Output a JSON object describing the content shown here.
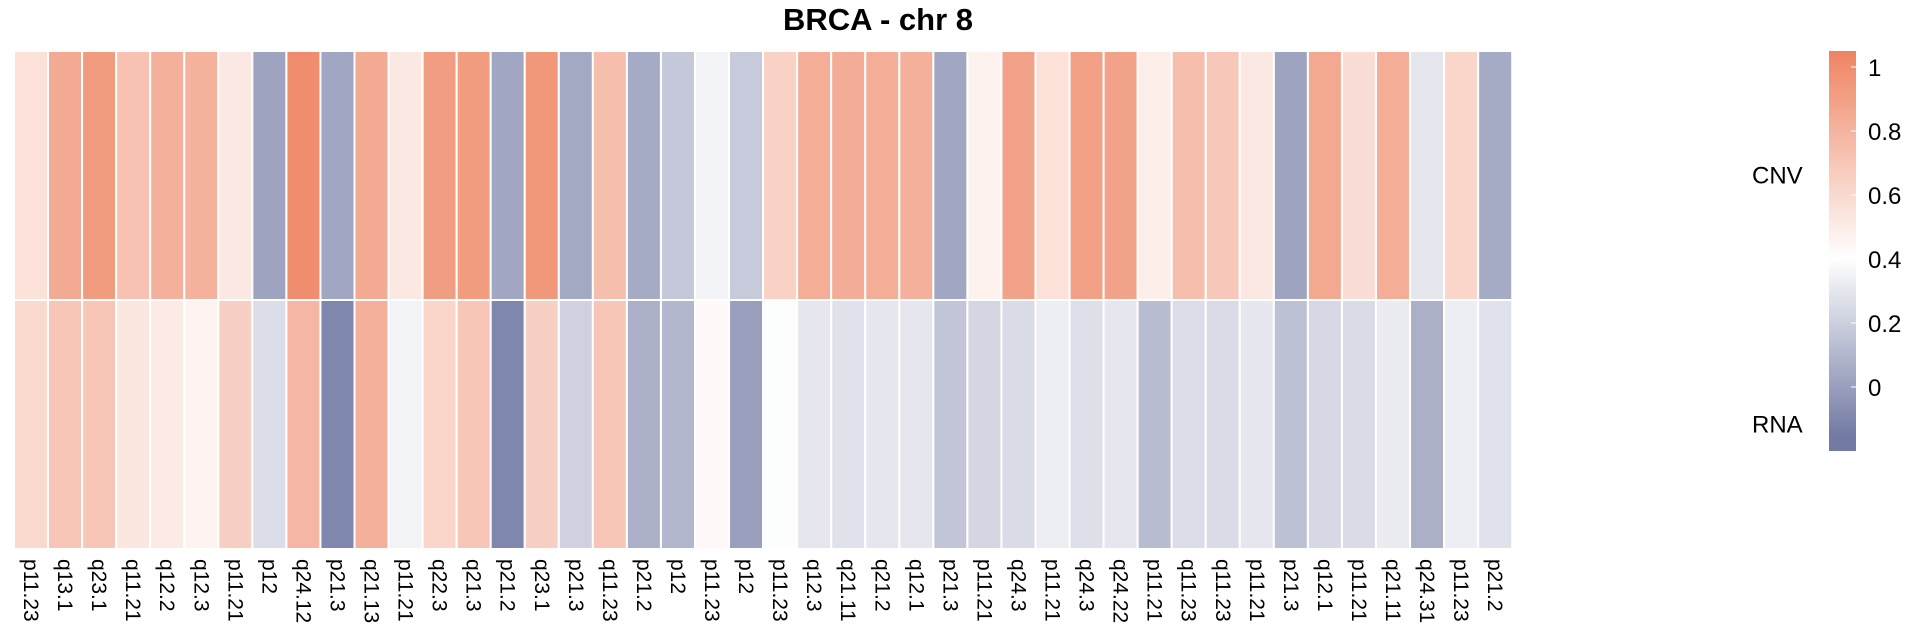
{
  "chart_data": {
    "type": "heatmap",
    "title": "BRCA - chr 8",
    "rows": [
      "CNV",
      "RNA"
    ],
    "columns": [
      "p11.23",
      "q13.1",
      "q23.1",
      "q11.21",
      "q12.2",
      "q12.3",
      "p11.21",
      "p12",
      "q24.12",
      "p21.3",
      "q21.13",
      "p11.21",
      "q22.3",
      "q21.3",
      "p21.2",
      "q23.1",
      "p21.3",
      "q11.23",
      "p21.2",
      "p12",
      "p11.23",
      "p12",
      "p11.23",
      "q12.3",
      "q21.11",
      "q21.2",
      "q12.1",
      "p21.3",
      "p11.21",
      "q24.3",
      "p11.21",
      "q24.3",
      "q24.22",
      "p11.21",
      "q11.23",
      "q11.23",
      "p11.21",
      "p21.3",
      "q12.1",
      "p11.21",
      "q21.11",
      "q24.31",
      "p11.23",
      "p21.2"
    ],
    "values": [
      [
        0.56,
        0.85,
        0.93,
        0.72,
        0.82,
        0.8,
        0.52,
        0.02,
        1.0,
        0.03,
        0.85,
        0.52,
        0.92,
        0.93,
        0.03,
        0.95,
        0.04,
        0.74,
        0.05,
        0.17,
        0.35,
        0.18,
        0.64,
        0.83,
        0.84,
        0.83,
        0.82,
        0.03,
        0.47,
        0.89,
        0.56,
        0.9,
        0.89,
        0.49,
        0.74,
        0.69,
        0.52,
        0.02,
        0.86,
        0.58,
        0.83,
        0.3,
        0.62,
        0.05
      ],
      [
        0.6,
        0.7,
        0.7,
        0.53,
        0.51,
        0.46,
        0.65,
        0.26,
        0.78,
        -0.1,
        0.82,
        0.35,
        0.62,
        0.7,
        -0.1,
        0.65,
        0.21,
        0.7,
        0.07,
        0.1,
        0.43,
        0.0,
        0.39,
        0.3,
        0.28,
        0.3,
        0.3,
        0.16,
        0.23,
        0.25,
        0.33,
        0.27,
        0.3,
        0.12,
        0.26,
        0.25,
        0.3,
        0.14,
        0.24,
        0.25,
        0.32,
        0.07,
        0.33,
        0.28
      ]
    ],
    "color_scale": {
      "stops": [
        {
          "value": -0.15,
          "color": "#737BA4"
        },
        {
          "value": 0.4,
          "color": "#FFFFFF"
        },
        {
          "value": 1.05,
          "color": "#EE8462"
        }
      ],
      "legend_ticks": [
        1,
        0.8,
        0.6,
        0.4,
        0.2,
        0
      ],
      "legend_tick_labels": [
        "1",
        "0.8",
        "0.6",
        "0.4",
        "0.2",
        "0"
      ],
      "legend_range": [
        -0.2,
        1.05
      ],
      "legend_placement": "right"
    }
  }
}
